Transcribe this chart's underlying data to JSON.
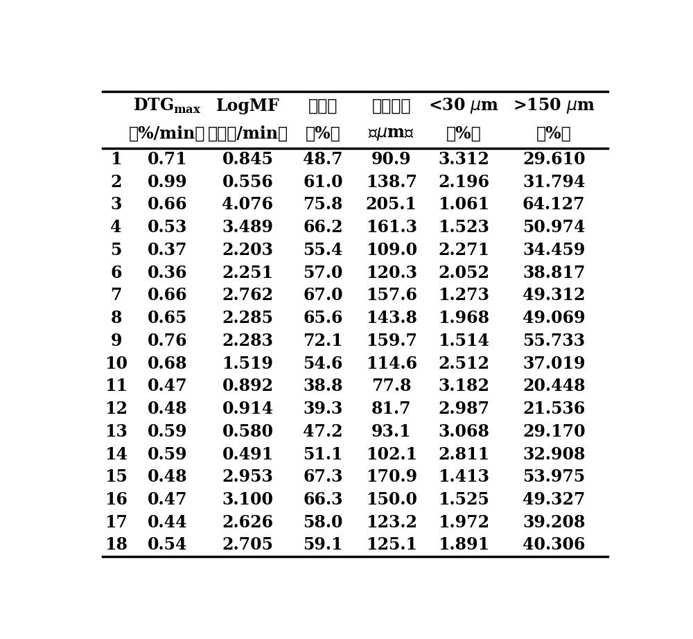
{
  "rows": [
    [
      1,
      0.71,
      0.845,
      48.7,
      90.9,
      3.312,
      29.61
    ],
    [
      2,
      0.99,
      0.556,
      61.0,
      138.7,
      2.196,
      31.794
    ],
    [
      3,
      0.66,
      4.076,
      75.8,
      205.1,
      1.061,
      64.127
    ],
    [
      4,
      0.53,
      3.489,
      66.2,
      161.3,
      1.523,
      50.974
    ],
    [
      5,
      0.37,
      2.203,
      55.4,
      109.0,
      2.271,
      34.459
    ],
    [
      6,
      0.36,
      2.251,
      57.0,
      120.3,
      2.052,
      38.817
    ],
    [
      7,
      0.66,
      2.762,
      67.0,
      157.6,
      1.273,
      49.312
    ],
    [
      8,
      0.65,
      2.285,
      65.6,
      143.8,
      1.968,
      49.069
    ],
    [
      9,
      0.76,
      2.283,
      72.1,
      159.7,
      1.514,
      55.733
    ],
    [
      10,
      0.68,
      1.519,
      54.6,
      114.6,
      2.512,
      37.019
    ],
    [
      11,
      0.47,
      0.892,
      38.8,
      77.8,
      3.182,
      20.448
    ],
    [
      12,
      0.48,
      0.914,
      39.3,
      81.7,
      2.987,
      21.536
    ],
    [
      13,
      0.59,
      0.58,
      47.2,
      93.1,
      3.068,
      29.17
    ],
    [
      14,
      0.59,
      0.491,
      51.1,
      102.1,
      2.811,
      32.908
    ],
    [
      15,
      0.48,
      2.953,
      67.3,
      170.9,
      1.413,
      53.975
    ],
    [
      16,
      0.47,
      3.1,
      66.3,
      150.0,
      1.525,
      49.327
    ],
    [
      17,
      0.44,
      2.626,
      58.0,
      123.2,
      1.972,
      39.208
    ],
    [
      18,
      0.54,
      2.705,
      59.1,
      125.1,
      1.891,
      40.306
    ]
  ],
  "background_color": "#ffffff",
  "fontsize": 17,
  "header_fontsize": 17
}
